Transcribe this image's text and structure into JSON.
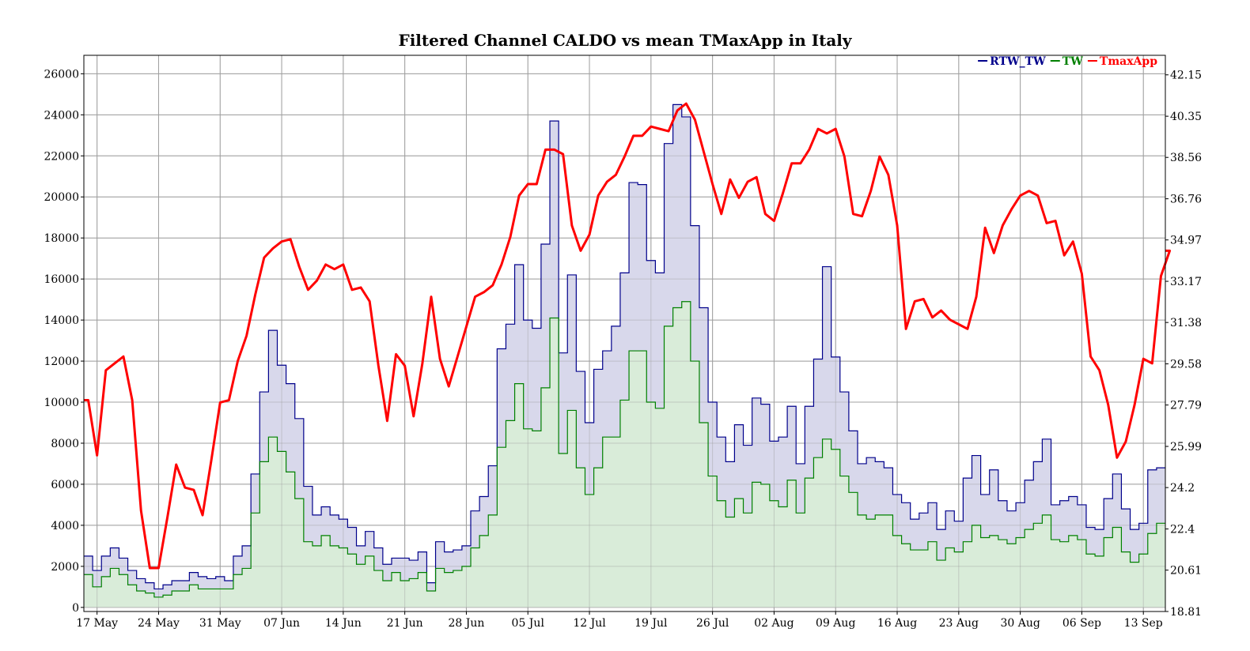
{
  "chart_data": {
    "type": "area",
    "title": "Filtered Channel CALDO vs mean TMaxApp in Italy",
    "xlabel": "",
    "ylabel": "",
    "x_tick_labels": [
      "17 May",
      "24 May",
      "31 May",
      "07 Jun",
      "14 Jun",
      "21 Jun",
      "28 Jun",
      "05 Jul",
      "12 Jul",
      "19 Jul",
      "26 Jul",
      "02 Aug",
      "09 Aug",
      "16 Aug",
      "23 Aug",
      "30 Aug",
      "06 Sep",
      "13 Sep"
    ],
    "y_left_ticks": [
      "0",
      "2000",
      "4000",
      "6000",
      "8000",
      "10000",
      "12000",
      "14000",
      "16000",
      "18000",
      "20000",
      "22000",
      "24000",
      "26000"
    ],
    "y_right_ticks": [
      "18.81",
      "20.61",
      "22.4",
      "24.2",
      "25.99",
      "27.79",
      "29.58",
      "31.38",
      "33.17",
      "34.97",
      "36.76",
      "38.56",
      "40.35",
      "42.15"
    ],
    "ylim_left": [
      -200,
      26900
    ],
    "ylim_right": [
      18.81,
      43.0
    ],
    "legend": [
      {
        "name": "RTW_TW",
        "color": "#00008b"
      },
      {
        "name": "TW",
        "color": "#008000"
      },
      {
        "name": "TmaxApp",
        "color": "#ff0000"
      }
    ],
    "legend_position": "top-right",
    "grid": true,
    "colors": {
      "rtw_line": "#00008b",
      "rtw_fill": "#d8d8eb",
      "tw_line": "#008000",
      "tw_fill": "#d9ecd9",
      "tmax": "#ff0000"
    },
    "series": [
      {
        "name": "RTW_TW",
        "values": [
          2500,
          1800,
          2500,
          2900,
          2400,
          1800,
          1400,
          1200,
          900,
          1100,
          1300,
          1300,
          1700,
          1500,
          1400,
          1500,
          1300,
          2500,
          3000,
          6500,
          10500,
          13500,
          11800,
          10900,
          9200,
          5900,
          4500,
          4900,
          4500,
          4300,
          3900,
          3000,
          3700,
          2900,
          2100,
          2400,
          2400,
          2300,
          2700,
          1200,
          3200,
          2700,
          2800,
          3000,
          4700,
          5400,
          6900,
          12600,
          13800,
          16700,
          14000,
          13600,
          17700,
          23700,
          12400,
          16200,
          11500,
          9000,
          11600,
          12500,
          13700,
          16300,
          20700,
          20600,
          16900,
          16300,
          22600,
          24500,
          23900,
          18600,
          14600,
          10000,
          8300,
          7100,
          8900,
          7900,
          10200,
          9900,
          8100,
          8300,
          9800,
          7000,
          9800,
          12100,
          16600,
          12200,
          10500,
          8600,
          7000,
          7300,
          7100,
          6800,
          5500,
          5100,
          4300,
          4600,
          5100,
          3800,
          4700,
          4200,
          6300,
          7400,
          5500,
          6700,
          5200,
          4700,
          5100,
          6200,
          7100,
          8200,
          5000,
          5200,
          5400,
          5000,
          3900,
          3800,
          5300,
          6500,
          4800,
          3800,
          4100,
          6700,
          6800
        ]
      },
      {
        "name": "TW",
        "values": [
          1600,
          1000,
          1500,
          1900,
          1600,
          1100,
          800,
          700,
          500,
          600,
          800,
          800,
          1100,
          900,
          900,
          900,
          900,
          1600,
          1900,
          4600,
          7100,
          8300,
          7600,
          6600,
          5300,
          3200,
          3000,
          3500,
          3000,
          2900,
          2600,
          2100,
          2500,
          1800,
          1300,
          1700,
          1300,
          1400,
          1700,
          800,
          1900,
          1700,
          1800,
          2000,
          2900,
          3500,
          4500,
          7800,
          9100,
          10900,
          8700,
          8600,
          10700,
          14100,
          7500,
          9600,
          6800,
          5500,
          6800,
          8300,
          8300,
          10100,
          12500,
          12500,
          10000,
          9700,
          13700,
          14600,
          14900,
          12000,
          9000,
          6400,
          5200,
          4400,
          5300,
          4600,
          6100,
          6000,
          5200,
          4900,
          6200,
          4600,
          6300,
          7300,
          8200,
          7700,
          6400,
          5600,
          4500,
          4300,
          4500,
          4500,
          3500,
          3100,
          2800,
          2800,
          3200,
          2300,
          2900,
          2700,
          3200,
          4000,
          3400,
          3500,
          3300,
          3100,
          3400,
          3800,
          4100,
          4500,
          3300,
          3200,
          3500,
          3300,
          2600,
          2500,
          3400,
          3900,
          2700,
          2200,
          2600,
          3600,
          4100
        ]
      },
      {
        "name": "TmaxApp",
        "values": [
          28.0,
          25.6,
          29.3,
          29.6,
          29.9,
          28.0,
          23.2,
          20.7,
          20.7,
          22.9,
          25.2,
          24.2,
          24.1,
          23.0,
          25.4,
          27.9,
          28.0,
          29.7,
          30.8,
          32.6,
          34.2,
          34.6,
          34.9,
          35.0,
          33.8,
          32.8,
          33.2,
          33.9,
          33.7,
          33.9,
          32.8,
          32.9,
          32.3,
          29.5,
          27.1,
          30.0,
          29.5,
          27.3,
          29.6,
          32.5,
          29.8,
          28.6,
          29.9,
          31.2,
          32.5,
          32.7,
          33.0,
          33.9,
          35.1,
          36.9,
          37.4,
          37.4,
          38.9,
          38.9,
          38.7,
          35.6,
          34.5,
          35.2,
          36.9,
          37.5,
          37.8,
          38.6,
          39.5,
          39.5,
          39.9,
          39.8,
          39.7,
          40.6,
          40.9,
          40.2,
          38.8,
          37.4,
          36.1,
          37.6,
          36.8,
          37.5,
          37.7,
          36.1,
          35.8,
          37.0,
          38.3,
          38.3,
          38.9,
          39.8,
          39.6,
          39.8,
          38.6,
          36.1,
          36.0,
          37.1,
          38.6,
          37.8,
          35.6,
          31.1,
          32.3,
          32.4,
          31.6,
          31.9,
          31.5,
          31.3,
          31.1,
          32.5,
          35.5,
          34.4,
          35.6,
          36.3,
          36.9,
          37.1,
          36.9,
          35.7,
          35.8,
          34.3,
          34.9,
          33.5,
          29.9,
          29.3,
          27.8,
          25.5,
          26.2,
          27.8,
          29.8,
          29.6,
          33.4,
          34.5
        ]
      }
    ]
  }
}
